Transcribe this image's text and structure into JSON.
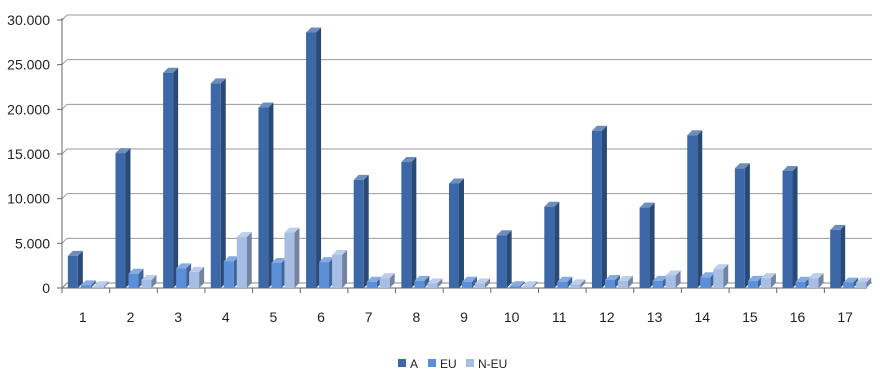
{
  "chart_data": {
    "type": "bar",
    "title": "",
    "xlabel": "",
    "ylabel": "",
    "categories": [
      "1",
      "2",
      "3",
      "4",
      "5",
      "6",
      "7",
      "8",
      "9",
      "10",
      "11",
      "12",
      "13",
      "14",
      "15",
      "16",
      "17"
    ],
    "y_tick_labels": [
      "0",
      "5.000",
      "10.000",
      "15.000",
      "20.000",
      "25.000",
      "30.000"
    ],
    "ylim": [
      0,
      30000
    ],
    "grid": true,
    "legend_position": "bottom",
    "series": [
      {
        "name": "A",
        "color": "#3c68a7",
        "values": [
          3600,
          15100,
          24100,
          22900,
          20200,
          28600,
          12100,
          14100,
          11700,
          5900,
          9100,
          17600,
          9000,
          17100,
          13400,
          13100,
          6500
        ]
      },
      {
        "name": "EU",
        "color": "#5b8fd8",
        "values": [
          300,
          1600,
          2200,
          3000,
          2800,
          2900,
          700,
          800,
          700,
          200,
          700,
          900,
          800,
          1200,
          800,
          700,
          600
        ]
      },
      {
        "name": "N-EU",
        "color": "#a6bde4",
        "values": [
          200,
          900,
          1800,
          5700,
          6200,
          3700,
          1100,
          500,
          500,
          200,
          400,
          800,
          1400,
          2100,
          1100,
          1100,
          600
        ]
      }
    ]
  }
}
